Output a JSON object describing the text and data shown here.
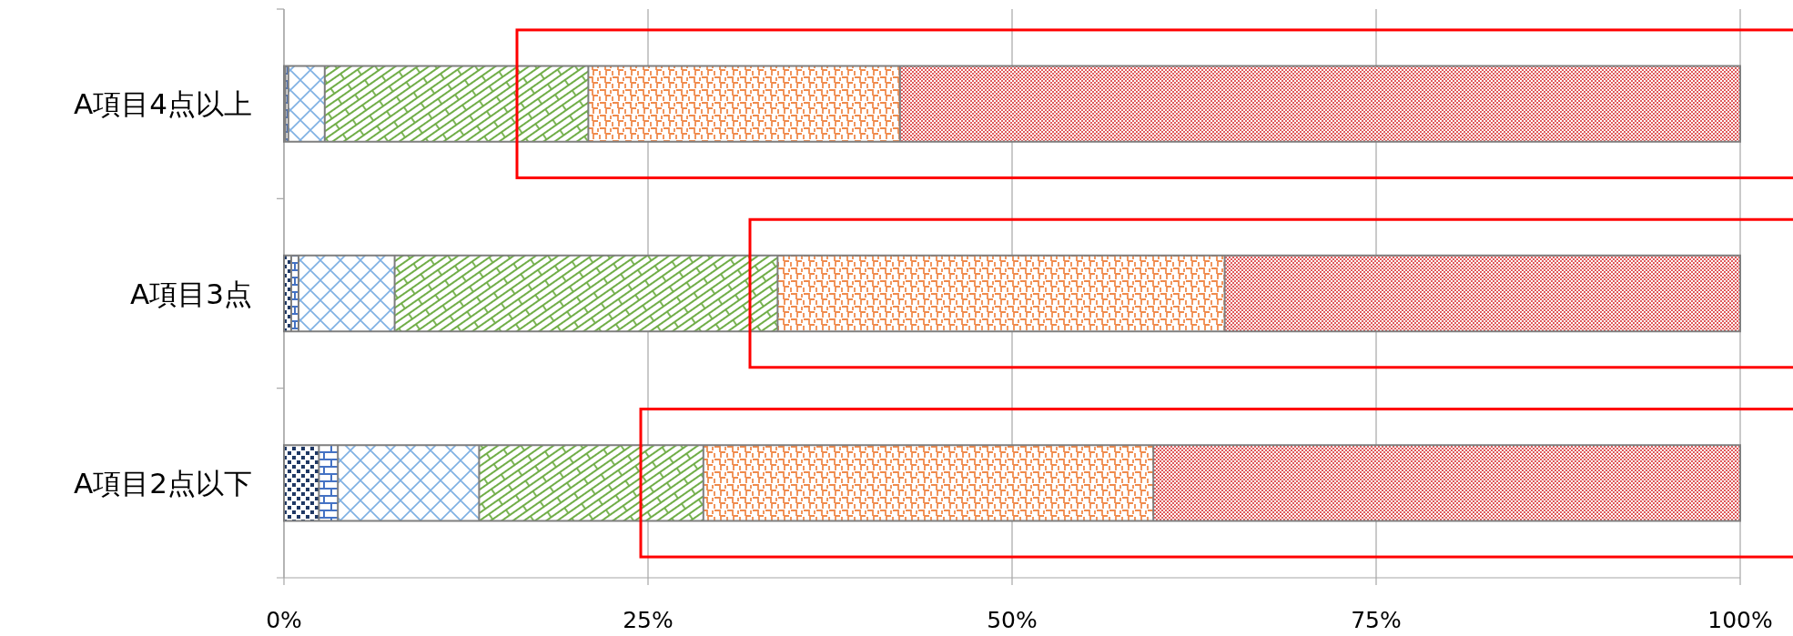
{
  "chart_data": {
    "type": "bar",
    "orientation": "horizontal",
    "stacked": true,
    "categories": [
      "A項目4点以上",
      "A項目3点",
      "A項目2点以下"
    ],
    "series": [
      {
        "color": "#1f3864",
        "values": [
          0.1,
          0.5,
          2.4
        ]
      },
      {
        "color": "#4472c4",
        "values": [
          0.2,
          0.5,
          1.3
        ]
      },
      {
        "color": "#7eb0e3",
        "values": [
          2.5,
          6.6,
          9.7
        ]
      },
      {
        "color": "#70ad47",
        "values": [
          18.1,
          26.3,
          15.4
        ]
      },
      {
        "color": "#f08a4b",
        "values": [
          21.4,
          30.7,
          30.9
        ]
      },
      {
        "color": "#e05a5a",
        "values": [
          57.7,
          35.4,
          40.3
        ]
      }
    ],
    "xlim": [
      0,
      100
    ],
    "xticks": [
      {
        "value": 0,
        "label": "0%"
      },
      {
        "value": 25,
        "label": "25%"
      },
      {
        "value": 50,
        "label": "50%"
      },
      {
        "value": 75,
        "label": "75%"
      },
      {
        "value": 100,
        "label": "100%"
      }
    ],
    "grid": "x"
  }
}
